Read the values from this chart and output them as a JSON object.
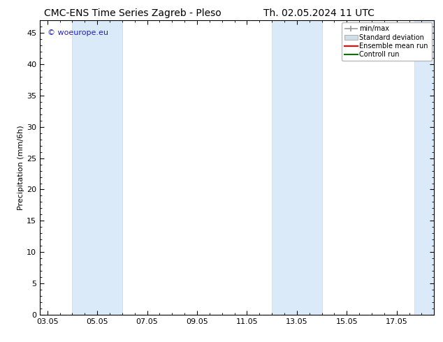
{
  "title_left": "CMC-ENS Time Series Zagreb - Pleso",
  "title_right": "Th. 02.05.2024 11 UTC",
  "ylabel": "Precipitation (mm/6h)",
  "watermark": "© woeurope.eu",
  "ylim": [
    0,
    47
  ],
  "yticks": [
    0,
    5,
    10,
    15,
    20,
    25,
    30,
    35,
    40,
    45
  ],
  "xtick_labels": [
    "03.05",
    "05.05",
    "07.05",
    "09.05",
    "11.05",
    "13.05",
    "15.05",
    "17.05"
  ],
  "xtick_positions": [
    0,
    2,
    4,
    6,
    8,
    10,
    12,
    14
  ],
  "xlim": [
    -0.3,
    15.5
  ],
  "shaded_bands": [
    {
      "x_start": 1,
      "x_end": 3
    },
    {
      "x_start": 9,
      "x_end": 11
    },
    {
      "x_start": 14.7,
      "x_end": 15.5
    }
  ],
  "shaded_color": "#daeaf8",
  "shaded_edge_color": "#c0d8ee",
  "bg_color": "#ffffff",
  "plot_bg_color": "#ffffff",
  "legend_items": [
    {
      "label": "min/max",
      "color": "#999999",
      "style": "errorbar"
    },
    {
      "label": "Standard deviation",
      "color": "#d0dde8",
      "style": "fill"
    },
    {
      "label": "Ensemble mean run",
      "color": "#ff0000",
      "style": "line"
    },
    {
      "label": "Controll run",
      "color": "#007700",
      "style": "line"
    }
  ],
  "title_fontsize": 10,
  "axis_label_fontsize": 8,
  "tick_fontsize": 8,
  "legend_fontsize": 7,
  "watermark_color": "#2222bb",
  "watermark_fontsize": 8
}
